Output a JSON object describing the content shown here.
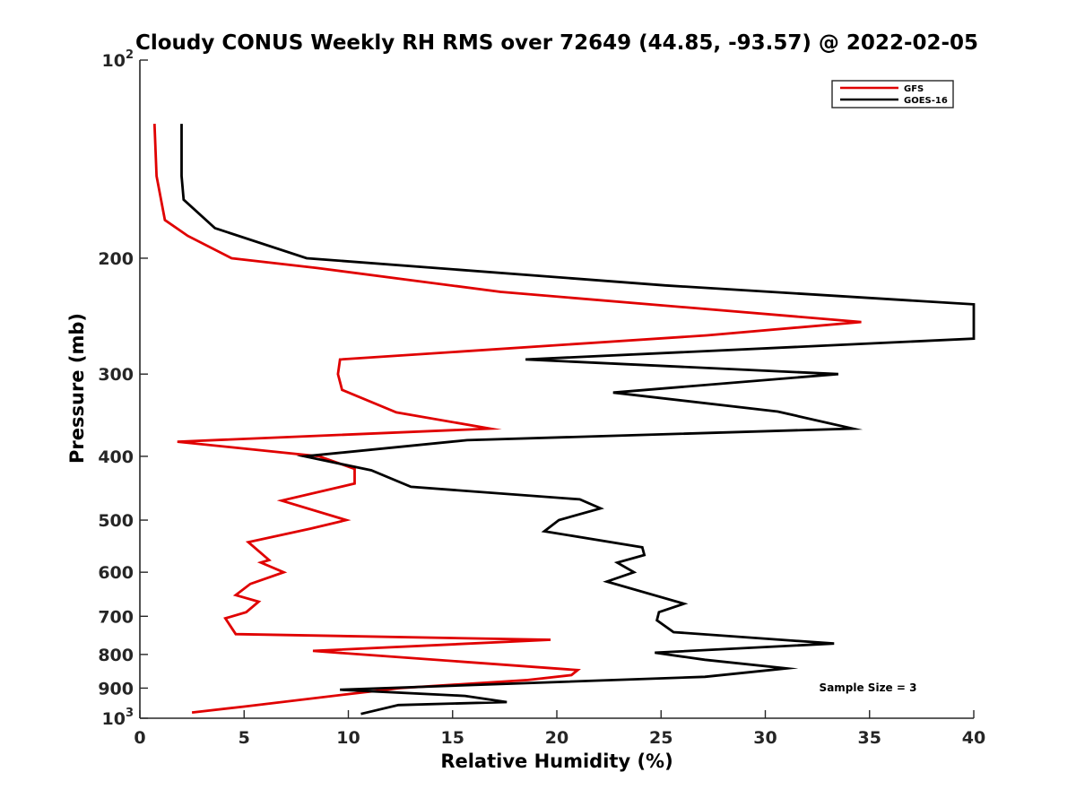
{
  "chart_data": {
    "type": "line",
    "title": "Cloudy CONUS Weekly RH RMS over 72649 (44.85, -93.57) @ 2022-02-05",
    "xlabel": "Relative Humidity (%)",
    "ylabel": "Pressure (mb)",
    "xlim": [
      0,
      40
    ],
    "ylim": [
      100,
      1000
    ],
    "yscale": "log",
    "y_reversed": true,
    "grid": false,
    "legend_position": "top-right",
    "x_ticks": [
      0,
      5,
      10,
      15,
      20,
      25,
      30,
      35,
      40
    ],
    "x_tick_labels": [
      "0",
      "5",
      "10",
      "15",
      "20",
      "25",
      "30",
      "35",
      "40"
    ],
    "y_ticks": [
      100,
      200,
      300,
      400,
      500,
      600,
      700,
      800,
      900,
      1000
    ],
    "y_tick_labels": [
      {
        "base": "10",
        "exp": "2"
      },
      {
        "base": "200",
        "exp": ""
      },
      {
        "base": "300",
        "exp": ""
      },
      {
        "base": "400",
        "exp": ""
      },
      {
        "base": "500",
        "exp": ""
      },
      {
        "base": "600",
        "exp": ""
      },
      {
        "base": "700",
        "exp": ""
      },
      {
        "base": "800",
        "exp": ""
      },
      {
        "base": "900",
        "exp": ""
      },
      {
        "base": "10",
        "exp": "3"
      }
    ],
    "annotation": "Sample Size = 3",
    "series": [
      {
        "name": "GFS",
        "color": "#e00000",
        "points": [
          {
            "x": 0.7,
            "y": 125
          },
          {
            "x": 0.8,
            "y": 150
          },
          {
            "x": 1.2,
            "y": 175
          },
          {
            "x": 2.3,
            "y": 185
          },
          {
            "x": 4.4,
            "y": 200
          },
          {
            "x": 8.5,
            "y": 207
          },
          {
            "x": 17.3,
            "y": 225
          },
          {
            "x": 34.6,
            "y": 250
          },
          {
            "x": 27.2,
            "y": 262
          },
          {
            "x": 9.6,
            "y": 285
          },
          {
            "x": 9.5,
            "y": 300
          },
          {
            "x": 9.7,
            "y": 317
          },
          {
            "x": 12.3,
            "y": 343
          },
          {
            "x": 16.8,
            "y": 363
          },
          {
            "x": 1.8,
            "y": 380
          },
          {
            "x": 8.6,
            "y": 400
          },
          {
            "x": 10.3,
            "y": 418
          },
          {
            "x": 10.3,
            "y": 440
          },
          {
            "x": 6.8,
            "y": 467
          },
          {
            "x": 9.9,
            "y": 500
          },
          {
            "x": 8.2,
            "y": 515
          },
          {
            "x": 5.2,
            "y": 540
          },
          {
            "x": 6.2,
            "y": 575
          },
          {
            "x": 5.8,
            "y": 580
          },
          {
            "x": 6.9,
            "y": 600
          },
          {
            "x": 5.3,
            "y": 625
          },
          {
            "x": 4.6,
            "y": 650
          },
          {
            "x": 5.7,
            "y": 665
          },
          {
            "x": 5.1,
            "y": 690
          },
          {
            "x": 4.1,
            "y": 705
          },
          {
            "x": 4.6,
            "y": 745
          },
          {
            "x": 19.7,
            "y": 760
          },
          {
            "x": 8.3,
            "y": 790
          },
          {
            "x": 21.0,
            "y": 845
          },
          {
            "x": 20.7,
            "y": 860
          },
          {
            "x": 18.6,
            "y": 875
          },
          {
            "x": 12.5,
            "y": 900
          },
          {
            "x": 9.9,
            "y": 920
          },
          {
            "x": 5.0,
            "y": 960
          },
          {
            "x": 2.5,
            "y": 980
          }
        ]
      },
      {
        "name": "GOES-16",
        "color": "#000000",
        "points": [
          {
            "x": 2.0,
            "y": 125
          },
          {
            "x": 2.0,
            "y": 150
          },
          {
            "x": 2.1,
            "y": 163
          },
          {
            "x": 3.6,
            "y": 180
          },
          {
            "x": 8.0,
            "y": 200
          },
          {
            "x": 25.2,
            "y": 220
          },
          {
            "x": 40.0,
            "y": 235
          },
          {
            "x": 40.0,
            "y": 265
          },
          {
            "x": 18.5,
            "y": 285
          },
          {
            "x": 33.5,
            "y": 300
          },
          {
            "x": 22.7,
            "y": 320
          },
          {
            "x": 30.6,
            "y": 342
          },
          {
            "x": 34.2,
            "y": 363
          },
          {
            "x": 15.7,
            "y": 378
          },
          {
            "x": 7.9,
            "y": 400
          },
          {
            "x": 11.1,
            "y": 420
          },
          {
            "x": 13.0,
            "y": 445
          },
          {
            "x": 21.1,
            "y": 465
          },
          {
            "x": 22.1,
            "y": 480
          },
          {
            "x": 20.1,
            "y": 500
          },
          {
            "x": 19.4,
            "y": 520
          },
          {
            "x": 24.1,
            "y": 550
          },
          {
            "x": 24.2,
            "y": 565
          },
          {
            "x": 22.9,
            "y": 580
          },
          {
            "x": 23.7,
            "y": 600
          },
          {
            "x": 22.4,
            "y": 620
          },
          {
            "x": 26.1,
            "y": 670
          },
          {
            "x": 24.9,
            "y": 690
          },
          {
            "x": 24.8,
            "y": 710
          },
          {
            "x": 25.6,
            "y": 740
          },
          {
            "x": 33.3,
            "y": 770
          },
          {
            "x": 24.7,
            "y": 795
          },
          {
            "x": 27.1,
            "y": 815
          },
          {
            "x": 31.0,
            "y": 840
          },
          {
            "x": 27.1,
            "y": 865
          },
          {
            "x": 9.6,
            "y": 905
          },
          {
            "x": 15.6,
            "y": 925
          },
          {
            "x": 17.6,
            "y": 945
          },
          {
            "x": 12.4,
            "y": 955
          },
          {
            "x": 10.6,
            "y": 985
          }
        ]
      }
    ]
  }
}
